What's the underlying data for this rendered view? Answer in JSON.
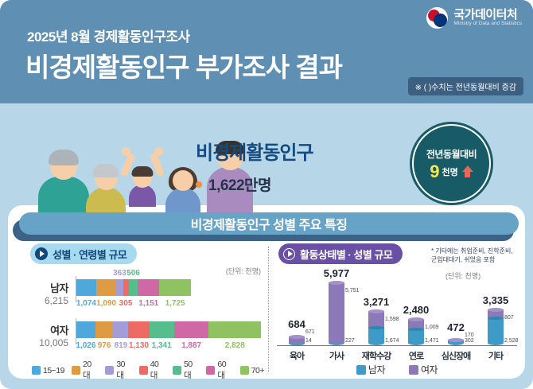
{
  "header": {
    "kicker": "2025년 8월 경제활동인구조사",
    "title": "비경제활동인구 부가조사 결과",
    "note": "※ ( )수치는 전년동월대비 증감",
    "logo": {
      "name": "국가데이터처",
      "subtitle": "Ministry of Data and Statistics"
    },
    "bg_color": "#5f8fb2"
  },
  "hero": {
    "title": "비경제활동인구",
    "value_text": "1,622만명",
    "badge": {
      "label": "전년동월대비",
      "value": "9",
      "unit": "천명",
      "direction": "up",
      "bg_color": "#175b66",
      "value_color": "#f5ea49",
      "arrow_color": "#e4695a"
    }
  },
  "ribbon": {
    "title": "비경제활동인구 성별 주요 특징",
    "bg_color": "#66a3c6"
  },
  "left_panel": {
    "title": "성별 · 연령별 규모",
    "unit": "(단위: 천명)"
  },
  "right_panel": {
    "title": "활동상태별 · 성별 규모",
    "note_line1": "* 기타에는 취업준비, 진학준비,",
    "note_line2": "군입대대기, 쉬었음 포함",
    "unit": "(단위: 천명)"
  },
  "chart_data": [
    {
      "type": "bar",
      "subtype": "horizontal-stacked",
      "title": "성별 · 연령별 규모",
      "unit": "천명",
      "groups": [
        "15~19",
        "20대",
        "30대",
        "40대",
        "50대",
        "60대",
        "70+"
      ],
      "colors": [
        "#4fa8db",
        "#de9b43",
        "#a49cd8",
        "#ed6b62",
        "#56bd8c",
        "#d168a6",
        "#8fc362"
      ],
      "rows": [
        {
          "category": "남자",
          "total": 6215,
          "values": [
            1074,
            1090,
            363,
            305,
            506,
            1151,
            1725
          ],
          "label_pos": [
            "below",
            "below",
            "above",
            "below",
            "above",
            "below",
            "below"
          ]
        },
        {
          "category": "여자",
          "total": 10005,
          "values": [
            1026,
            976,
            819,
            1130,
            1341,
            1887,
            2828
          ],
          "label_pos": [
            "below",
            "below",
            "below",
            "below",
            "below",
            "below",
            "below"
          ]
        }
      ],
      "legend_position": "bottom"
    },
    {
      "type": "bar",
      "subtype": "vertical-stacked-cylinder",
      "title": "활동상태별 · 성별 규모",
      "unit": "천명",
      "footnote": "* 기타에는 취업준비, 진학준비, 군입대대기, 쉬었음 포함",
      "categories": [
        "육아",
        "가사",
        "재학수강",
        "연로",
        "심신장애",
        "기타"
      ],
      "totals": [
        684,
        5977,
        3271,
        2480,
        472,
        3335
      ],
      "series": [
        {
          "name": "남자",
          "color": "#3e9ac6",
          "values": [
            14,
            227,
            1674,
            1471,
            302,
            2528
          ]
        },
        {
          "name": "여자",
          "color": "#8b79b8",
          "values": [
            671,
            5751,
            1598,
            1009,
            170,
            807
          ]
        }
      ],
      "legend": [
        "남자",
        "여자"
      ],
      "legend_position": "bottom"
    }
  ]
}
